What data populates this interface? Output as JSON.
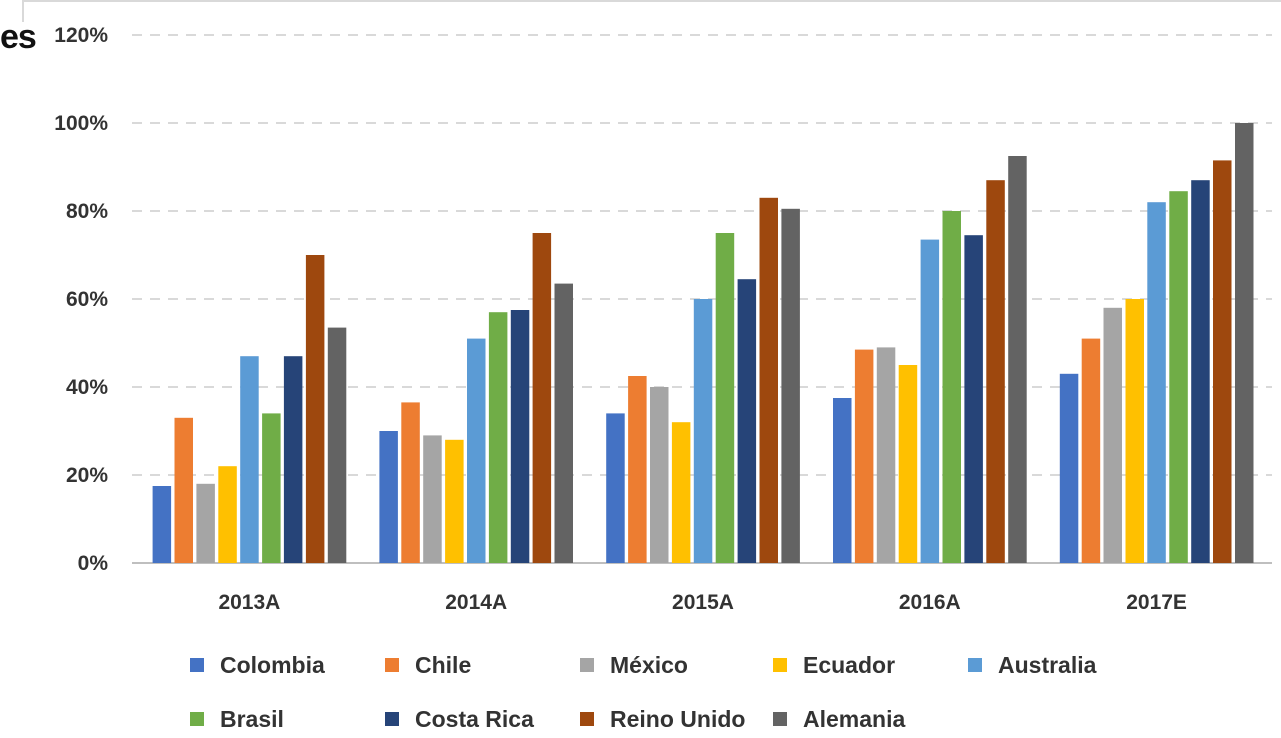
{
  "cut_title": "es",
  "chart_data": {
    "type": "bar",
    "categories": [
      "2013A",
      "2014A",
      "2015A",
      "2016A",
      "2017E"
    ],
    "ylim": [
      0,
      120
    ],
    "yticks": [
      "0%",
      "20%",
      "40%",
      "60%",
      "80%",
      "100%",
      "120%"
    ],
    "grid": true,
    "legend_position": "bottom",
    "series": [
      {
        "name": "Colombia",
        "color": "#4472c4",
        "values": [
          17.5,
          30,
          34,
          37.5,
          43
        ]
      },
      {
        "name": "Chile",
        "color": "#ed7d31",
        "values": [
          33,
          36.5,
          42.5,
          48.5,
          51
        ]
      },
      {
        "name": "México",
        "color": "#a5a5a5",
        "values": [
          18,
          29,
          40,
          49,
          58
        ]
      },
      {
        "name": "Ecuador",
        "color": "#ffc000",
        "values": [
          22,
          28,
          32,
          45,
          60
        ]
      },
      {
        "name": "Australia",
        "color": "#5b9bd5",
        "values": [
          47,
          51,
          60,
          73.5,
          82
        ]
      },
      {
        "name": "Brasil",
        "color": "#70ad47",
        "values": [
          34,
          57,
          75,
          80,
          84.5
        ]
      },
      {
        "name": "Costa Rica",
        "color": "#264478",
        "values": [
          47,
          57.5,
          64.5,
          74.5,
          87
        ]
      },
      {
        "name": "Reino Unido",
        "color": "#9e480e",
        "values": [
          70,
          75,
          83,
          87,
          91.5
        ]
      },
      {
        "name": "Alemania",
        "color": "#636363",
        "values": [
          53.5,
          63.5,
          80.5,
          92.5,
          100
        ]
      }
    ]
  }
}
